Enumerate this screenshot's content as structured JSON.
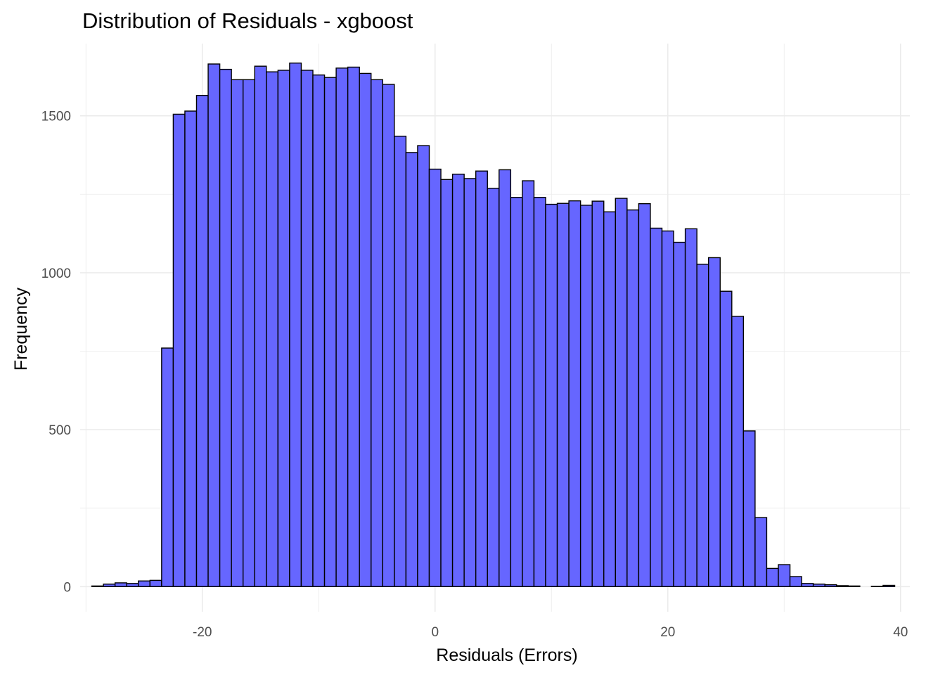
{
  "chart_data": {
    "type": "bar",
    "subtype": "histogram",
    "title": "Distribution of Residuals - xgboost",
    "xlabel": "Residuals (Errors)",
    "ylabel": "Frequency",
    "xlim": [
      -30.5,
      40.8
    ],
    "ylim": [
      -80,
      1730
    ],
    "x_ticks": [
      -20,
      0,
      20,
      40
    ],
    "x_tick_labels": [
      "-20",
      "0",
      "20",
      "40"
    ],
    "y_ticks": [
      0,
      500,
      1000,
      1500
    ],
    "y_tick_labels": [
      "0",
      "500",
      "1000",
      "1500"
    ],
    "x_minor_ticks": [
      -30,
      -10,
      10,
      30
    ],
    "y_minor_ticks": [
      250,
      750,
      1250
    ],
    "grid": true,
    "legend": "none",
    "fill_color": "#6666ff",
    "edge_color": "#000000",
    "grid_color": "#ebebeb",
    "bins": {
      "x_start": -29.5,
      "width": 1.0,
      "counts": [
        2,
        8,
        12,
        10,
        18,
        20,
        760,
        1505,
        1515,
        1565,
        1665,
        1648,
        1615,
        1615,
        1658,
        1640,
        1645,
        1668,
        1645,
        1630,
        1622,
        1652,
        1655,
        1635,
        1615,
        1600,
        1435,
        1383,
        1405,
        1330,
        1297,
        1314,
        1300,
        1324,
        1269,
        1328,
        1240,
        1293,
        1240,
        1218,
        1221,
        1229,
        1215,
        1228,
        1194,
        1237,
        1200,
        1220,
        1142,
        1133,
        1097,
        1140,
        1027,
        1048,
        941,
        861,
        496,
        220,
        58,
        70,
        32,
        10,
        8,
        6,
        3,
        2,
        0,
        1,
        4
      ]
    }
  }
}
